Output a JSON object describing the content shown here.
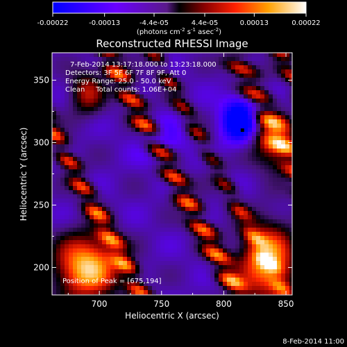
{
  "chart_data": {
    "type": "heatmap",
    "title": "Reconstructed RHESSI Image",
    "xlabel": "Heliocentric X (arcsec)",
    "ylabel": "Heliocentric Y (arcsec)",
    "xlim": [
      662,
      855
    ],
    "ylim": [
      178,
      372
    ],
    "xticks": [
      700,
      750,
      800,
      850
    ],
    "yticks": [
      200,
      250,
      300,
      350
    ],
    "colorbar": {
      "title_prefix": "(photons cm",
      "title_sup1": "-2",
      "title_mid": " s",
      "title_sup2": "-1",
      "title_mid2": " asec",
      "title_sup3": "-2",
      "title_suffix": ")",
      "range": [
        -0.00022,
        0.00022
      ],
      "tick_labels": [
        "-0.00022",
        "-0.00013",
        "-4.4e-05",
        "4.4e-05",
        "0.00013",
        "0.00022"
      ]
    },
    "info_lines": [
      "7-Feb-2014 13:17:18.000 to 13:23:18.000",
      "Detectors: 3F 5F 6F 7F 8F 9F, Att 0",
      "Energy Range: 25.0 - 50.0 keV",
      "Clean     Total counts: 1.06E+04"
    ],
    "peak_text": "Position of Peak = [675,194]",
    "marker": {
      "x": 815,
      "y": 310
    },
    "footer_date": "8-Feb-2014 11:00",
    "grid": false
  }
}
